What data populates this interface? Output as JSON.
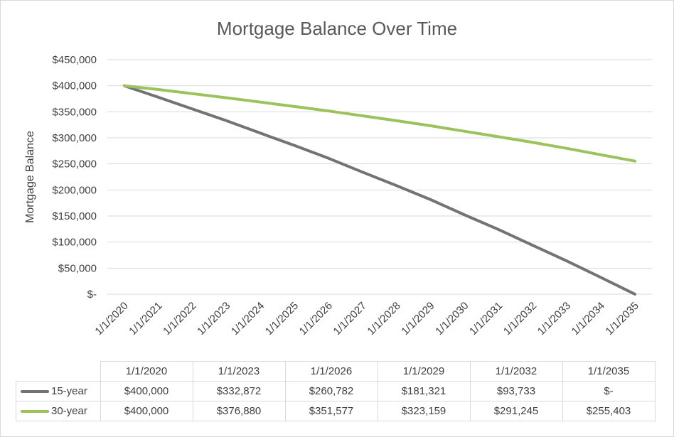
{
  "chart_data": {
    "type": "line",
    "title": "Mortgage Balance Over Time",
    "xlabel": "",
    "ylabel": "Mortgage Balance",
    "ylim": [
      0,
      450000
    ],
    "y_ticks": [
      0,
      50000,
      100000,
      150000,
      200000,
      250000,
      300000,
      350000,
      400000,
      450000
    ],
    "y_tick_labels": [
      "$-",
      "$50,000",
      "$100,000",
      "$150,000",
      "$200,000",
      "$250,000",
      "$300,000",
      "$350,000",
      "$400,000",
      "$450,000"
    ],
    "x_tick_labels": [
      "1/1/2020",
      "1/1/2021",
      "1/1/2022",
      "1/1/2023",
      "1/1/2024",
      "1/1/2025",
      "1/1/2026",
      "1/1/2027",
      "1/1/2028",
      "1/1/2029",
      "1/1/2030",
      "1/1/2031",
      "1/1/2032",
      "1/1/2033",
      "1/1/2034",
      "1/1/2035"
    ],
    "grid": true,
    "series": [
      {
        "name": "15-year",
        "color": "#737373",
        "values": [
          400000,
          377800,
          355300,
          332872,
          309000,
          285300,
          260782,
          234200,
          208200,
          181321,
          152000,
          123800,
          93733,
          63700,
          32000,
          0
        ]
      },
      {
        "name": "30-year",
        "color": "#9bc25b",
        "values": [
          400000,
          392700,
          384800,
          376880,
          368600,
          360100,
          351577,
          342300,
          332900,
          323159,
          312600,
          302000,
          291245,
          279800,
          267600,
          255403
        ]
      }
    ],
    "table": {
      "columns": [
        "1/1/2020",
        "1/1/2023",
        "1/1/2026",
        "1/1/2029",
        "1/1/2032",
        "1/1/2035"
      ],
      "rows": [
        {
          "name": "15-year",
          "color": "#737373",
          "cells": [
            "$400,000",
            "$332,872",
            "$260,782",
            "$181,321",
            "$93,733",
            "$-"
          ]
        },
        {
          "name": "30-year",
          "color": "#9bc25b",
          "cells": [
            "$400,000",
            "$376,880",
            "$351,577",
            "$323,159",
            "$291,245",
            "$255,403"
          ]
        }
      ]
    }
  }
}
